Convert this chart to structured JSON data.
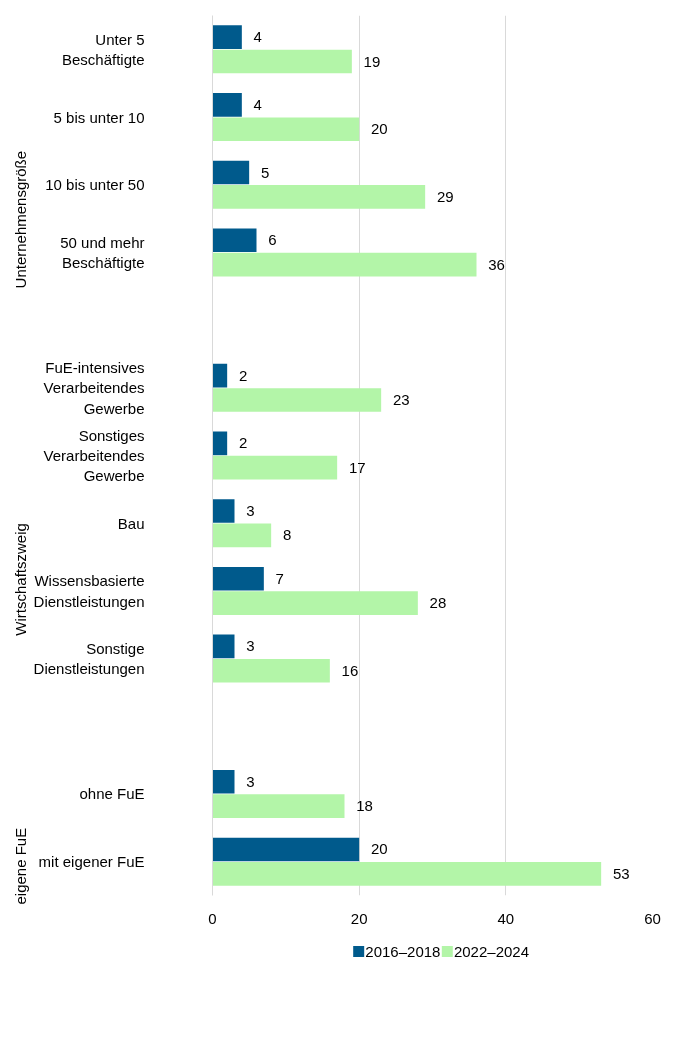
{
  "chart_data": {
    "type": "bar",
    "orientation": "horizontal",
    "categories": [
      "Unter 5 Beschäftigte",
      "5 bis unter 10",
      "10 bis unter 50",
      "50 und mehr Beschäftigte",
      null,
      "FuE-intensives Verarbeitendes Gewerbe",
      "Sonstiges Verarbeitendes Gewerbe",
      "Bau",
      "Wissensbasierte Dienstleistungen",
      "Sonstige Dienstleistungen",
      null,
      "ohne FuE",
      "mit eigener FuE"
    ],
    "series": [
      {
        "name": "2016–2018",
        "color": "#005a8c",
        "values": [
          4,
          4,
          5,
          6,
          null,
          2,
          2,
          3,
          7,
          3,
          null,
          3,
          20
        ]
      },
      {
        "name": "2022–2024",
        "color": "#b3f5a8",
        "values": [
          19,
          20,
          29,
          36,
          null,
          23,
          17,
          8,
          28,
          16,
          null,
          18,
          53
        ]
      }
    ],
    "annotations": [
      "Unternehmensgröße",
      "Wirtschaftszweig",
      "eigene FuE"
    ],
    "xlim": [
      0,
      60
    ],
    "xticks": [
      0,
      20,
      40,
      60
    ],
    "grid": "x",
    "legend": "bottom",
    "data_labels": true
  }
}
